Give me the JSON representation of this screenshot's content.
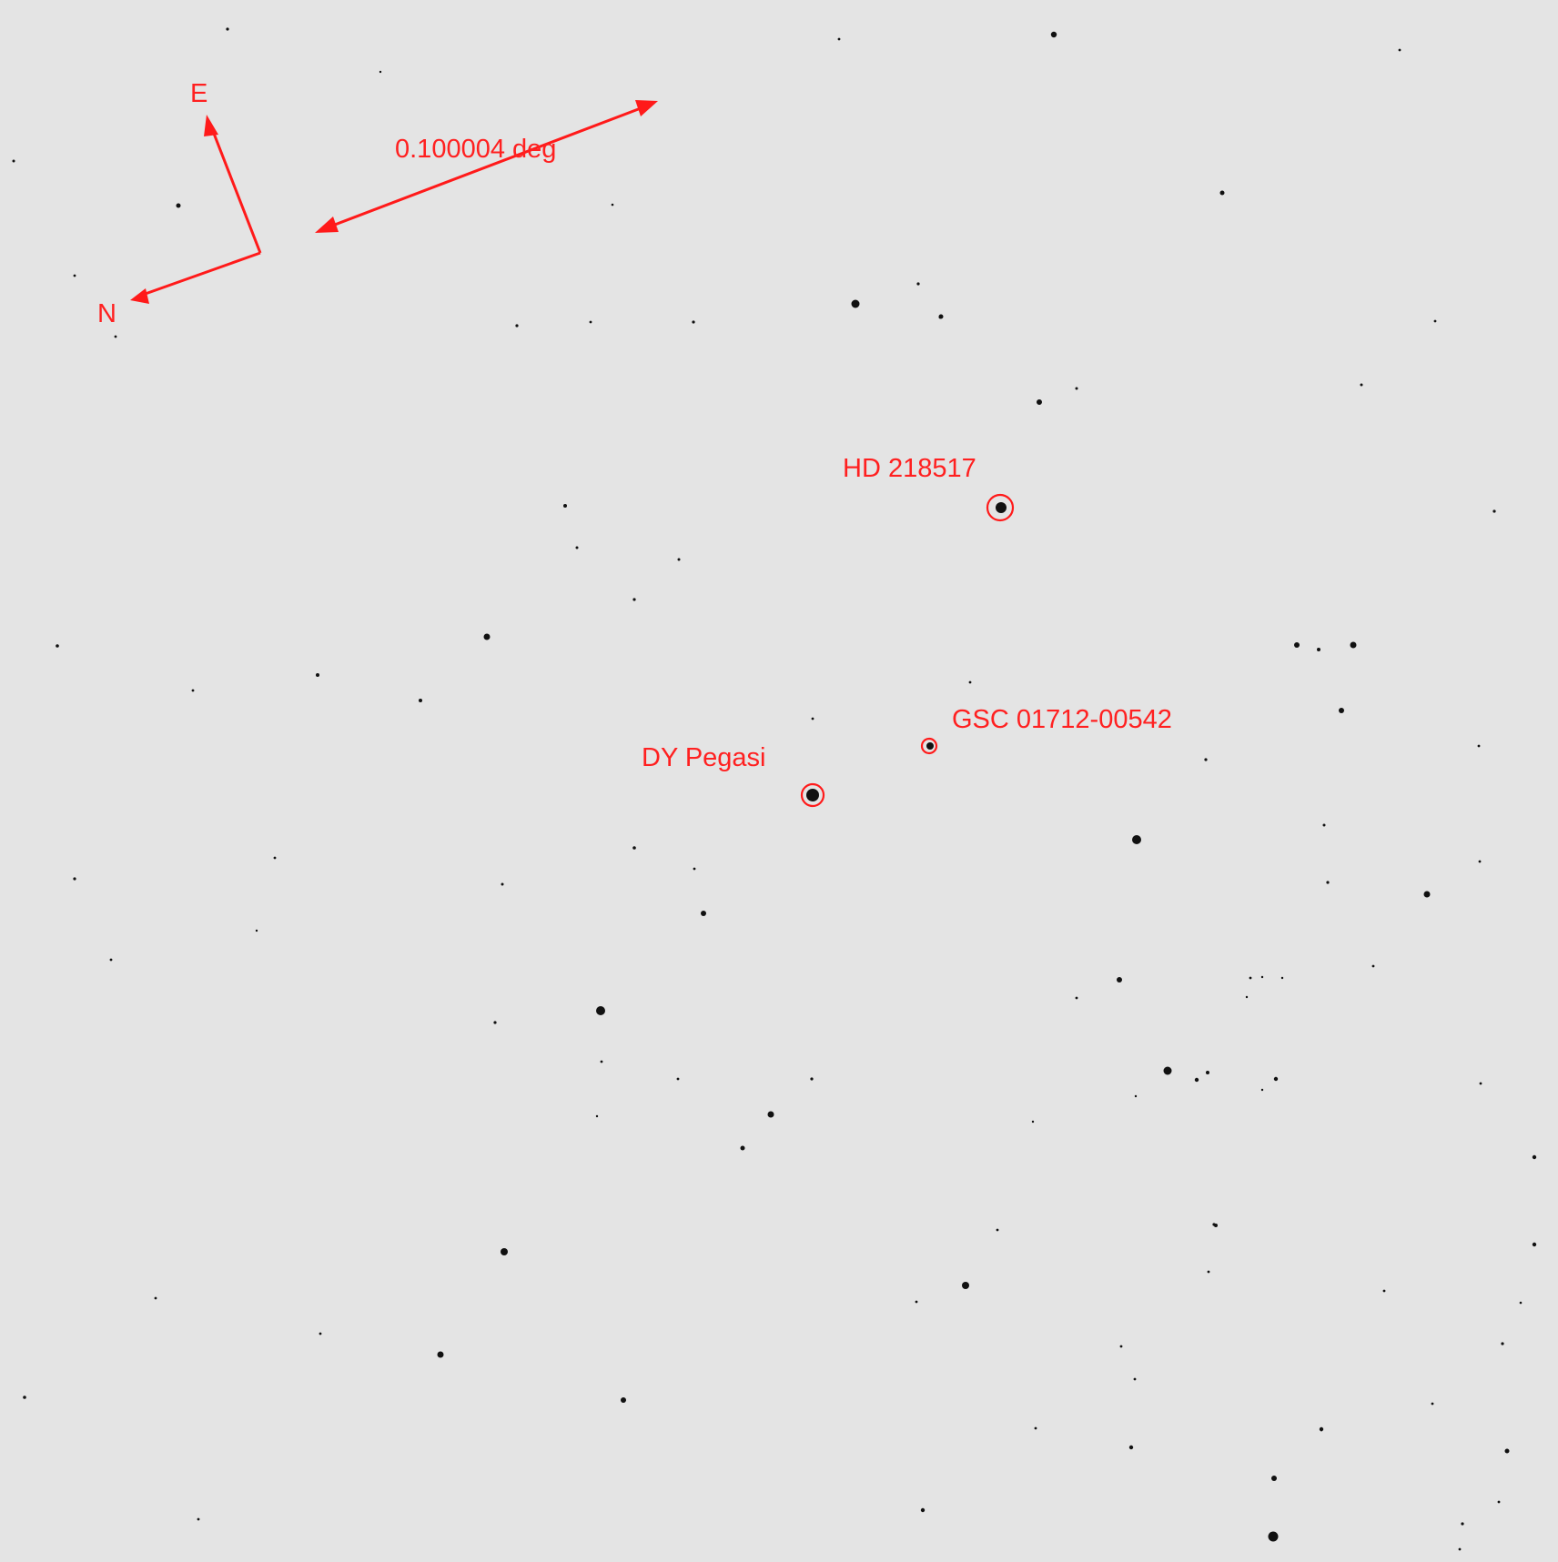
{
  "image": {
    "background_color": "#e4e4e4",
    "overlay_color": "#ff1a1a",
    "star_color": "#111111"
  },
  "compass": {
    "east_label": "E",
    "north_label": "N"
  },
  "scale_bar": {
    "label": "0.100004 deg"
  },
  "objects": [
    {
      "id": "hd",
      "label": "HD 218517"
    },
    {
      "id": "gsc",
      "label": "GSC 01712-00542"
    },
    {
      "id": "dy",
      "label": "DY Pegasi"
    }
  ]
}
